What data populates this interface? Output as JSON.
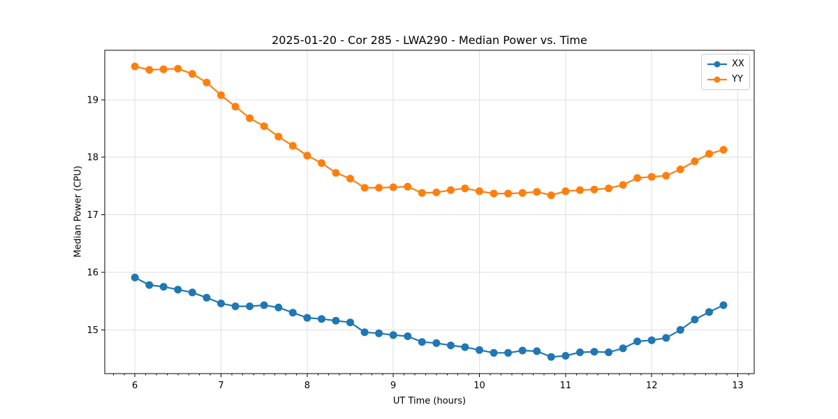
{
  "chart_data": {
    "type": "line",
    "title": "2025-01-20 - Cor 285 - LWA290 - Median Power vs. Time",
    "xlabel": "UT Time (hours)",
    "ylabel": "Median Power (CPU)",
    "xlim": [
      5.65,
      13.19
    ],
    "ylim": [
      14.24,
      19.86
    ],
    "xticks": [
      6,
      7,
      8,
      9,
      10,
      11,
      12,
      13
    ],
    "yticks": [
      15,
      16,
      17,
      18,
      19
    ],
    "x_minor_step": 0.125,
    "grid": true,
    "grid_color": "#dfdfdf",
    "axis_color": "#000000",
    "background_color": "#ffffff",
    "legend_position": "upper right",
    "marker": "circle",
    "marker_radius": 5.5,
    "line_width": 2.2,
    "x": [
      6.0,
      6.167,
      6.333,
      6.5,
      6.667,
      6.833,
      7.0,
      7.167,
      7.333,
      7.5,
      7.667,
      7.833,
      8.0,
      8.167,
      8.333,
      8.5,
      8.667,
      8.833,
      9.0,
      9.167,
      9.333,
      9.5,
      9.667,
      9.833,
      10.0,
      10.167,
      10.333,
      10.5,
      10.667,
      10.833,
      11.0,
      11.167,
      11.333,
      11.5,
      11.667,
      11.833,
      12.0,
      12.167,
      12.333,
      12.5,
      12.667,
      12.833
    ],
    "series": [
      {
        "name": "XX",
        "color": "#1f77b4",
        "values": [
          15.91,
          15.78,
          15.75,
          15.7,
          15.65,
          15.56,
          15.46,
          15.41,
          15.41,
          15.43,
          15.39,
          15.3,
          15.21,
          15.19,
          15.16,
          15.13,
          14.96,
          14.94,
          14.91,
          14.89,
          14.79,
          14.77,
          14.73,
          14.7,
          14.65,
          14.6,
          14.6,
          14.64,
          14.63,
          14.53,
          14.55,
          14.61,
          14.62,
          14.61,
          14.68,
          14.8,
          14.82,
          14.86,
          15.0,
          15.18,
          15.31,
          15.43
        ]
      },
      {
        "name": "YY",
        "color": "#ff7f0e",
        "values": [
          19.58,
          19.52,
          19.53,
          19.54,
          19.45,
          19.3,
          19.08,
          18.88,
          18.68,
          18.54,
          18.36,
          18.2,
          18.03,
          17.9,
          17.73,
          17.63,
          17.47,
          17.47,
          17.48,
          17.49,
          17.38,
          17.39,
          17.43,
          17.46,
          17.41,
          17.37,
          17.37,
          17.38,
          17.4,
          17.34,
          17.41,
          17.43,
          17.44,
          17.46,
          17.52,
          17.64,
          17.66,
          17.68,
          17.79,
          17.93,
          18.06,
          18.13
        ]
      }
    ]
  }
}
